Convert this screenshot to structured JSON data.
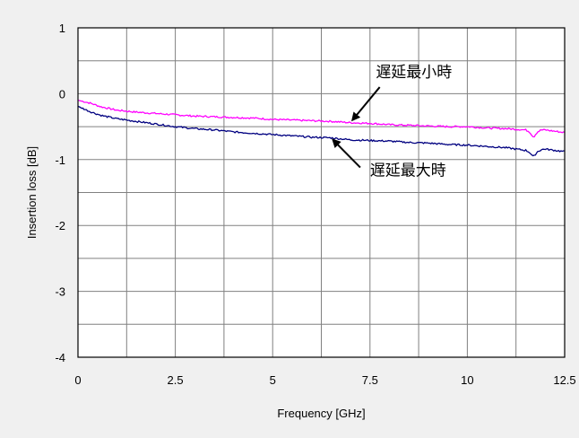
{
  "chart_data": {
    "type": "line",
    "title": "",
    "xlabel": "Frequency [GHz]",
    "ylabel": "Insertion loss [dB]",
    "xlim": [
      0,
      12.5
    ],
    "ylim": [
      -4,
      1
    ],
    "grid": true,
    "x_major_ticks": [
      0,
      2.5,
      5,
      7.5,
      10,
      12.5
    ],
    "x_tick_labels": [
      "0",
      "2.5",
      "5",
      "7.5",
      "10",
      "12.5"
    ],
    "y_major_ticks": [
      1,
      0,
      -1,
      -2,
      -3,
      -4
    ],
    "y_tick_labels": [
      "1",
      "0",
      "-1",
      "-2",
      "-3",
      "-4"
    ],
    "x_grid_step": 1.25,
    "y_grid_step": 0.5,
    "series": [
      {
        "name": "遅延最小時",
        "color": "#ff00ff",
        "x": [
          0,
          0.3,
          0.6,
          1,
          1.5,
          2,
          2.5,
          3,
          3.5,
          4,
          4.5,
          5,
          5.5,
          6,
          6.5,
          7,
          7.5,
          8,
          8.5,
          9,
          9.5,
          10,
          10.5,
          11,
          11.5,
          11.6,
          11.7,
          11.8,
          11.9,
          12,
          12.5
        ],
        "y": [
          -0.1,
          -0.14,
          -0.2,
          -0.25,
          -0.28,
          -0.3,
          -0.32,
          -0.34,
          -0.35,
          -0.36,
          -0.37,
          -0.39,
          -0.4,
          -0.41,
          -0.42,
          -0.44,
          -0.45,
          -0.47,
          -0.48,
          -0.49,
          -0.5,
          -0.5,
          -0.52,
          -0.53,
          -0.55,
          -0.58,
          -0.66,
          -0.58,
          -0.55,
          -0.55,
          -0.59
        ]
      },
      {
        "name": "遅延最大時",
        "color": "#000080",
        "x": [
          0,
          0.3,
          0.6,
          1,
          1.5,
          2,
          2.5,
          3,
          3.5,
          4,
          4.5,
          5,
          5.5,
          6,
          6.5,
          7,
          7.5,
          8,
          8.5,
          9,
          9.5,
          10,
          10.5,
          11,
          11.5,
          11.6,
          11.7,
          11.8,
          11.9,
          12,
          12.5
        ],
        "y": [
          -0.19,
          -0.27,
          -0.33,
          -0.38,
          -0.42,
          -0.46,
          -0.5,
          -0.53,
          -0.55,
          -0.58,
          -0.6,
          -0.62,
          -0.64,
          -0.66,
          -0.67,
          -0.7,
          -0.71,
          -0.72,
          -0.74,
          -0.75,
          -0.77,
          -0.78,
          -0.8,
          -0.82,
          -0.86,
          -0.89,
          -0.96,
          -0.88,
          -0.85,
          -0.84,
          -0.88
        ]
      }
    ],
    "annotations": [
      {
        "text": "遅延最小時",
        "target_series": 0
      },
      {
        "text": "遅延最大時",
        "target_series": 1
      }
    ]
  }
}
